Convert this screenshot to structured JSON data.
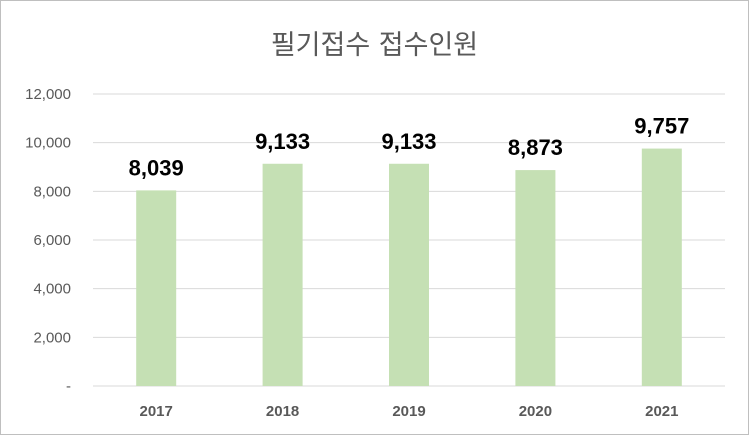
{
  "chart_data": {
    "type": "bar",
    "title": "필기접수 접수인원",
    "categories": [
      "2017",
      "2018",
      "2019",
      "2020",
      "2021"
    ],
    "values": [
      8039,
      9133,
      9133,
      8873,
      9757
    ],
    "data_labels": [
      "8,039",
      "9,133",
      "9,133",
      "8,873",
      "9,757"
    ],
    "ylim": [
      0,
      12000
    ],
    "yticks": [
      0,
      2000,
      4000,
      6000,
      8000,
      10000,
      12000
    ],
    "ytick_labels": [
      "-",
      "2,000",
      "4,000",
      "6,000",
      "8,000",
      "10,000",
      "12,000"
    ],
    "grid": true,
    "legend": "none",
    "bar_color": "#c5e0b4",
    "grid_color": "#d9d9d9"
  }
}
